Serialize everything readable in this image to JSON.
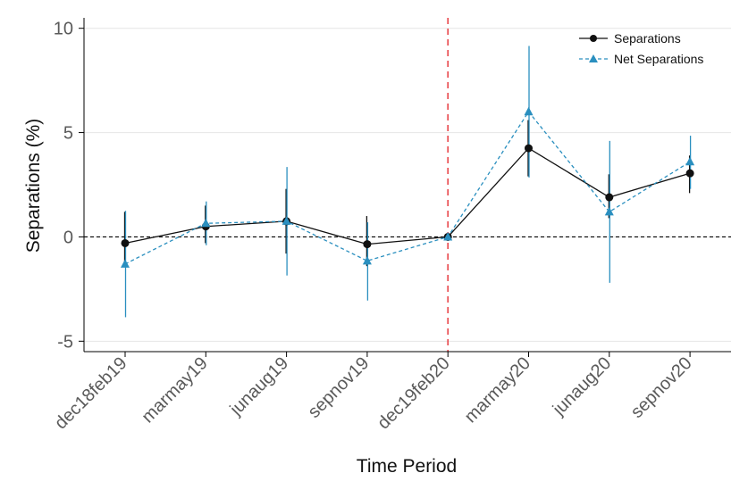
{
  "chart_data": {
    "type": "line",
    "title": "",
    "xlabel": "Time Period",
    "ylabel": "Separations (%)",
    "categories": [
      "dec18feb19",
      "marmay19",
      "junaug19",
      "sepnov19",
      "dec19feb20",
      "marmay20",
      "junaug20",
      "sepnov20"
    ],
    "ylim": [
      -5.5,
      10.5
    ],
    "yticks": [
      -5,
      0,
      5,
      10
    ],
    "ytick_labels": [
      "-5",
      "0",
      "5",
      "10"
    ],
    "grid": "horizontal",
    "legend_position": "top-right",
    "zero_line": 0,
    "event_line_category": "dec19feb20",
    "series": [
      {
        "name": "Separations",
        "marker": "circle",
        "line_style": "solid",
        "color": "#111111",
        "values": [
          -0.3,
          0.5,
          0.75,
          -0.35,
          0.0,
          4.25,
          1.9,
          3.05
        ],
        "ci_low": [
          -1.3,
          -0.3,
          -0.8,
          -1.4,
          0.0,
          2.9,
          0.9,
          2.1
        ],
        "ci_high": [
          1.2,
          1.5,
          2.3,
          1.0,
          0.0,
          5.6,
          3.0,
          3.9
        ]
      },
      {
        "name": "Net Separations",
        "marker": "triangle",
        "line_style": "dashed",
        "color": "#2a8fbf",
        "values": [
          -1.3,
          0.65,
          0.75,
          -1.15,
          0.0,
          6.0,
          1.2,
          3.6
        ],
        "ci_low": [
          -3.85,
          -0.4,
          -1.85,
          -3.05,
          0.0,
          2.85,
          -2.2,
          2.3
        ],
        "ci_high": [
          1.25,
          1.7,
          3.35,
          0.7,
          0.0,
          9.15,
          4.6,
          4.85
        ]
      }
    ],
    "colors": {
      "event_line": "#e8474c",
      "grid": "#e6e6e6",
      "axis": "#000000"
    }
  }
}
